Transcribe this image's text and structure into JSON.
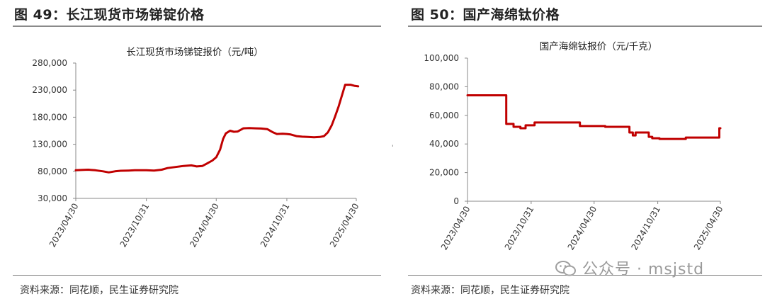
{
  "figures": [
    {
      "figure_title": "图 49：长江现货市场锑锭价格",
      "source": "资料来源：同花顺，民生证券研究院"
    },
    {
      "figure_title": "图 50：国产海绵钛价格",
      "source": "资料来源：同花顺，民生证券研究院"
    }
  ],
  "watermark": "公众号 · msjstd",
  "stray_mark": "'",
  "colors": {
    "line": "#c00000",
    "axis": "#888888",
    "text": "#333333"
  },
  "chart_data": [
    {
      "type": "line",
      "title": "长江现货市场锑锭报价（元/吨）",
      "xlabel": "",
      "ylabel": "",
      "ylim": [
        30000,
        280000
      ],
      "yticks": [
        "280,000",
        "230,000",
        "180,000",
        "130,000",
        "80,000",
        "30,000"
      ],
      "ytick_values": [
        280000,
        230000,
        180000,
        130000,
        80000,
        30000
      ],
      "xticks": [
        "2023/04/30",
        "2023/10/31",
        "2024/04/30",
        "2024/10/31",
        "2025/04/30"
      ],
      "xtick_values": [
        "2023-04-30",
        "2023-10-31",
        "2024-04-30",
        "2024-10-31",
        "2025-04-30"
      ],
      "grid": false,
      "series": [
        {
          "x": [
            "2023-04-30",
            "2023-05-15",
            "2023-06-01",
            "2023-06-20",
            "2023-07-10",
            "2023-07-25",
            "2023-08-10",
            "2023-08-25",
            "2023-09-15",
            "2023-10-01",
            "2023-10-31",
            "2023-11-20",
            "2023-12-10",
            "2023-12-25",
            "2024-01-15",
            "2024-02-05",
            "2024-02-25",
            "2024-03-10",
            "2024-03-25",
            "2024-04-05",
            "2024-04-20",
            "2024-04-30",
            "2024-05-10",
            "2024-05-18",
            "2024-05-25",
            "2024-06-05",
            "2024-06-15",
            "2024-06-25",
            "2024-07-10",
            "2024-07-25",
            "2024-08-10",
            "2024-08-25",
            "2024-09-10",
            "2024-09-25",
            "2024-10-05",
            "2024-10-20",
            "2024-10-31",
            "2024-11-10",
            "2024-11-25",
            "2024-12-10",
            "2024-12-25",
            "2025-01-10",
            "2025-01-25",
            "2025-02-05",
            "2025-02-15",
            "2025-02-25",
            "2025-03-05",
            "2025-03-15",
            "2025-04-01",
            "2025-04-15",
            "2025-04-25",
            "2025-05-05"
          ],
          "values": [
            82000,
            82500,
            83000,
            82000,
            80000,
            78000,
            80000,
            81000,
            81500,
            82000,
            82000,
            81500,
            83000,
            86000,
            88000,
            90000,
            91000,
            89000,
            90000,
            94000,
            100000,
            106000,
            120000,
            140000,
            150000,
            155000,
            153000,
            153500,
            159500,
            160000,
            159500,
            159000,
            158000,
            152000,
            149000,
            149500,
            149000,
            148000,
            145000,
            144000,
            143500,
            143000,
            143500,
            145000,
            152000,
            165000,
            180000,
            200000,
            240000,
            240000,
            238000,
            237000
          ]
        }
      ]
    },
    {
      "type": "line",
      "title": "国产海绵钛报价（元/千克）",
      "xlabel": "",
      "ylabel": "",
      "ylim": [
        0,
        100000
      ],
      "yticks": [
        "100,000",
        "80,000",
        "60,000",
        "40,000",
        "20,000",
        "0"
      ],
      "ytick_values": [
        100000,
        80000,
        60000,
        40000,
        20000,
        0
      ],
      "xticks": [
        "2023/04/30",
        "2023/10/31",
        "2024/04/30",
        "2024/10/31",
        "2025/04/30"
      ],
      "xtick_values": [
        "2023-04-30",
        "2023-10-31",
        "2024-04-30",
        "2024-10-31",
        "2025-04-30"
      ],
      "grid": false,
      "step": true,
      "series": [
        {
          "x": [
            "2023-04-30",
            "2023-08-10",
            "2023-08-20",
            "2023-09-10",
            "2023-09-30",
            "2023-10-15",
            "2023-11-10",
            "2024-01-20",
            "2024-03-20",
            "2024-06-01",
            "2024-07-10",
            "2024-08-10",
            "2024-08-20",
            "2024-08-28",
            "2024-09-10",
            "2024-10-05",
            "2024-10-15",
            "2024-11-05",
            "2024-11-25",
            "2025-01-20",
            "2025-04-25",
            "2025-04-27",
            "2025-04-30"
          ],
          "values": [
            74000,
            74000,
            54000,
            52000,
            51000,
            53000,
            55000,
            55000,
            52500,
            52000,
            52000,
            48000,
            46000,
            48000,
            48000,
            45000,
            44000,
            43500,
            43500,
            44500,
            44500,
            51000,
            51000
          ]
        }
      ]
    }
  ]
}
